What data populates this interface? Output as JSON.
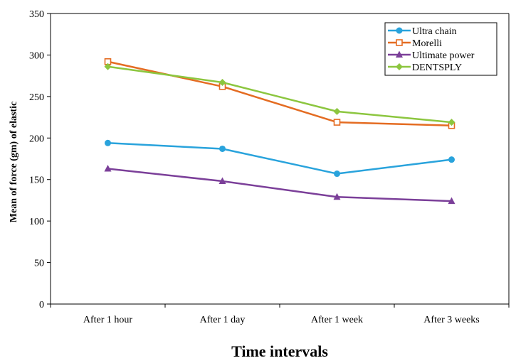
{
  "chart_data": {
    "type": "line",
    "title": "",
    "xlabel": "Time intervals",
    "ylabel": "Mean of force (gm) of elastic",
    "ylim": [
      0,
      350
    ],
    "yticks": [
      0,
      50,
      100,
      150,
      200,
      250,
      300,
      350
    ],
    "grid": false,
    "legend_position": "top-right",
    "categories": [
      "After 1 hour",
      "After 1 day",
      "After 1 week",
      "After 3 weeks"
    ],
    "series": [
      {
        "name": "Ultra chain",
        "values": [
          194,
          187,
          157,
          174
        ],
        "color": "#29a3dc",
        "marker": "circle"
      },
      {
        "name": "Morelli",
        "values": [
          292,
          262,
          219,
          215
        ],
        "color": "#e46c22",
        "marker": "square-open"
      },
      {
        "name": "Ultimate power",
        "values": [
          163,
          148,
          129,
          124
        ],
        "color": "#7b3f99",
        "marker": "triangle"
      },
      {
        "name": "DENTSPLY",
        "values": [
          286,
          267,
          232,
          219
        ],
        "color": "#8cc63f",
        "marker": "diamond"
      }
    ]
  }
}
